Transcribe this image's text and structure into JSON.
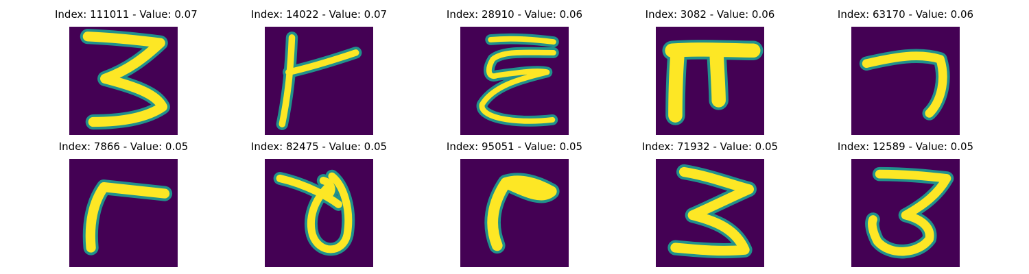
{
  "figure": {
    "colormap": [
      "#440154",
      "#3b528b",
      "#21918c",
      "#5ec962",
      "#fde725"
    ],
    "panels": [
      {
        "title": "Index: 111011 - Value: 0.07",
        "index": 111011,
        "value": 0.07,
        "glyph": "3-shaped stroke"
      },
      {
        "title": "Index: 14022 - Value: 0.07",
        "index": 14022,
        "value": 0.07,
        "glyph": "vertical with right arm"
      },
      {
        "title": "Index: 28910 - Value: 0.06",
        "index": 28910,
        "value": 0.06,
        "glyph": "epsilon-shaped stroke"
      },
      {
        "title": "Index: 3082 - Value: 0.06",
        "index": 3082,
        "value": 0.06,
        "glyph": "pi-shaped stroke"
      },
      {
        "title": "Index: 63170 - Value: 0.06",
        "index": 63170,
        "value": 0.06,
        "glyph": "7-shaped stroke"
      },
      {
        "title": "Index: 7866 - Value: 0.05",
        "index": 7866,
        "value": 0.05,
        "glyph": "gamma-shaped stroke"
      },
      {
        "title": "Index: 82475 - Value: 0.05",
        "index": 82475,
        "value": 0.05,
        "glyph": "loop-shaped stroke"
      },
      {
        "title": "Index: 95051 - Value: 0.05",
        "index": 95051,
        "value": 0.05,
        "glyph": "curved hook stroke"
      },
      {
        "title": "Index: 71932 - Value: 0.05",
        "index": 71932,
        "value": 0.05,
        "glyph": "3-shaped stroke"
      },
      {
        "title": "Index: 12589 - Value: 0.05",
        "index": 12589,
        "value": 0.05,
        "glyph": "3-shaped curved stroke"
      }
    ]
  }
}
